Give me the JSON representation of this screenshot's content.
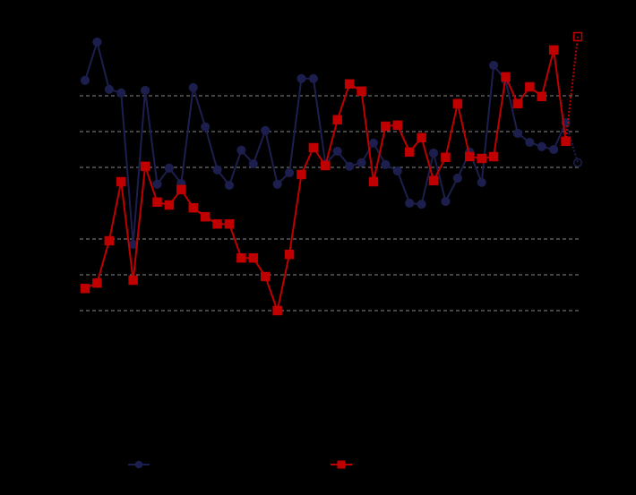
{
  "chart_data": {
    "type": "line",
    "series": [
      {
        "color": "#1c1f4d",
        "marker": "circle",
        "values": [
          3.43,
          4.5,
          3.18,
          3.08,
          -1.15,
          3.15,
          0.53,
          0.98,
          0.55,
          3.23,
          2.13,
          0.93,
          0.5,
          1.48,
          1.1,
          2.03,
          0.53,
          0.85,
          3.48,
          3.48,
          1.1,
          1.45,
          1.03,
          1.13,
          1.68,
          1.08,
          0.9,
          0,
          -0.03,
          1.4,
          0.05,
          0.7,
          1.43,
          0.58,
          3.85,
          3.43,
          1.95,
          1.7,
          1.58,
          1.5,
          2.25,
          1.13
        ]
      },
      {
        "color": "#c00000",
        "marker": "square",
        "values": [
          -2.38,
          -2.23,
          -1.05,
          0.6,
          -2.15,
          1.03,
          0.03,
          -0.05,
          0.38,
          -0.13,
          -0.38,
          -0.58,
          -0.58,
          -1.53,
          -1.53,
          -2.05,
          -3,
          -1.43,
          0.8,
          1.55,
          1.05,
          2.33,
          3.33,
          3.13,
          0.6,
          2.15,
          2.18,
          1.43,
          1.83,
          0.63,
          1.28,
          2.78,
          1.3,
          1.25,
          1.3,
          3.53,
          2.78,
          3.25,
          2.98,
          4.28,
          1.73,
          4.65
        ]
      }
    ],
    "last_point_projected": true,
    "ylim": [
      -3.5,
      4.9
    ],
    "yticks": [
      -3,
      -2,
      -1,
      0,
      1,
      2,
      3
    ],
    "grid": true
  }
}
